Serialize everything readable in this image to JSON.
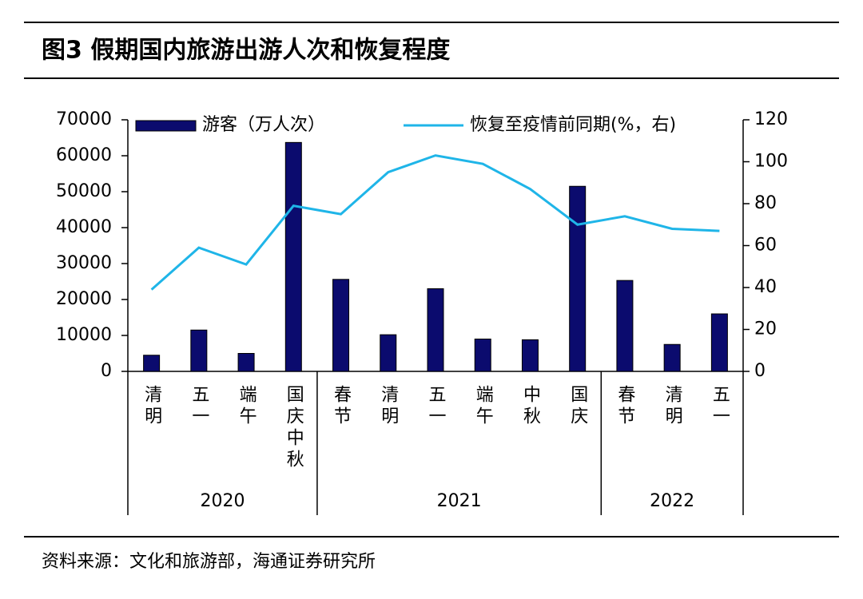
{
  "chart_data": {
    "type": "bar_line",
    "title": "图3   假期国内旅游出游人次和恢复程度",
    "source": "资料来源：文化和旅游部，海通证券研究所",
    "groups": [
      {
        "name": "2020",
        "categories": [
          "清明",
          "五一",
          "端午",
          "国庆中秋"
        ]
      },
      {
        "name": "2021",
        "categories": [
          "春节",
          "清明",
          "五一",
          "端午",
          "中秋",
          "国庆"
        ]
      },
      {
        "name": "2022",
        "categories": [
          "春节",
          "清明",
          "五一"
        ]
      }
    ],
    "series": [
      {
        "name": "游客（万人次）",
        "type": "bar",
        "color": "#0b0b6e",
        "values": [
          4500,
          11500,
          5000,
          63700,
          25600,
          10200,
          23000,
          9000,
          8800,
          51500,
          25300,
          7500,
          16000
        ]
      },
      {
        "name": "恢复至疫情前同期(%，右)",
        "type": "line",
        "axis": "y2",
        "color": "#1fb5e8",
        "values": [
          39,
          59,
          51,
          79,
          75,
          95,
          103,
          99,
          87,
          70,
          74,
          68,
          67
        ]
      }
    ],
    "ylim": [
      0,
      70000
    ],
    "yticks": [
      0,
      10000,
      20000,
      30000,
      40000,
      50000,
      60000,
      70000
    ],
    "y2lim": [
      0,
      120
    ],
    "y2ticks": [
      0,
      20,
      40,
      60,
      80,
      100,
      120
    ],
    "legend": "top"
  }
}
